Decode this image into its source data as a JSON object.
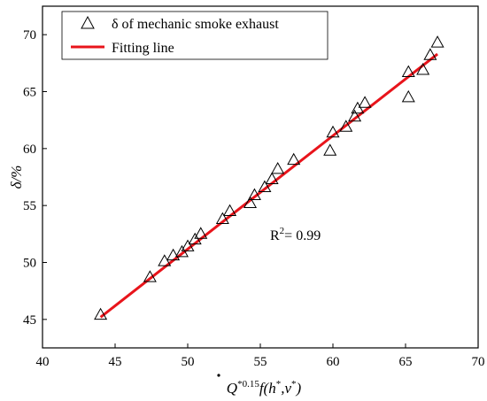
{
  "chart_data": {
    "type": "scatter",
    "xlabel": {
      "base": "Q",
      "sup1": "*0.15",
      "func": "f(h",
      "sup2": "*",
      "mid": ",v",
      "sup3": "*",
      "end": ")"
    },
    "ylabel": "δ/%",
    "xlim": [
      40,
      70
    ],
    "ylim": [
      42.5,
      72.5
    ],
    "xticks": [
      40,
      45,
      50,
      55,
      60,
      65,
      70
    ],
    "yticks": [
      45,
      50,
      55,
      60,
      65,
      70
    ],
    "grid": false,
    "legend_position": "top-left",
    "series": [
      {
        "name": "δ of mechanic smoke exhaust",
        "kind": "scatter",
        "marker": "open-triangle",
        "color": "#000000",
        "x": [
          44.0,
          47.4,
          48.4,
          49.0,
          49.6,
          50.0,
          50.5,
          50.9,
          52.4,
          52.9,
          54.3,
          54.6,
          55.3,
          55.8,
          56.2,
          57.3,
          59.8,
          60.0,
          60.9,
          61.5,
          61.7,
          62.2,
          65.2,
          65.2,
          66.2,
          66.7,
          67.2
        ],
        "y": [
          45.4,
          48.7,
          50.1,
          50.6,
          50.9,
          51.4,
          52.0,
          52.5,
          53.8,
          54.5,
          55.2,
          55.9,
          56.6,
          57.3,
          58.2,
          59.0,
          59.8,
          61.4,
          61.9,
          62.8,
          63.5,
          64.0,
          64.5,
          66.7,
          66.9,
          68.2,
          69.3
        ]
      },
      {
        "name": "Fitting line",
        "kind": "line",
        "color": "#e8141b",
        "x": [
          44.0,
          67.2
        ],
        "y": [
          45.2,
          68.3
        ]
      }
    ],
    "annotations": [
      {
        "text": "R",
        "sup": "2",
        "rest": "= 0.99",
        "x": 55.5,
        "y": 51.9
      }
    ]
  }
}
